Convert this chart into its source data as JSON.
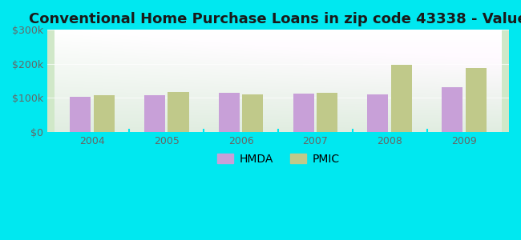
{
  "title": "Conventional Home Purchase Loans in zip code 43338 - Value",
  "years": [
    "2004",
    "2005",
    "2006",
    "2007",
    "2008",
    "2009"
  ],
  "hmda_values": [
    103000,
    108000,
    115000,
    113000,
    110000,
    132000
  ],
  "pmic_values": [
    108000,
    118000,
    110000,
    115000,
    197000,
    188000
  ],
  "hmda_color": "#c8a0d8",
  "pmic_color": "#c0c98a",
  "ylim": [
    0,
    300000
  ],
  "yticks": [
    0,
    100000,
    200000,
    300000
  ],
  "ytick_labels": [
    "$0",
    "$100k",
    "$200k",
    "$300k"
  ],
  "background_outer": "#00e8f0",
  "title_fontsize": 13,
  "bar_width": 0.28,
  "legend_labels": [
    "HMDA",
    "PMIC"
  ]
}
